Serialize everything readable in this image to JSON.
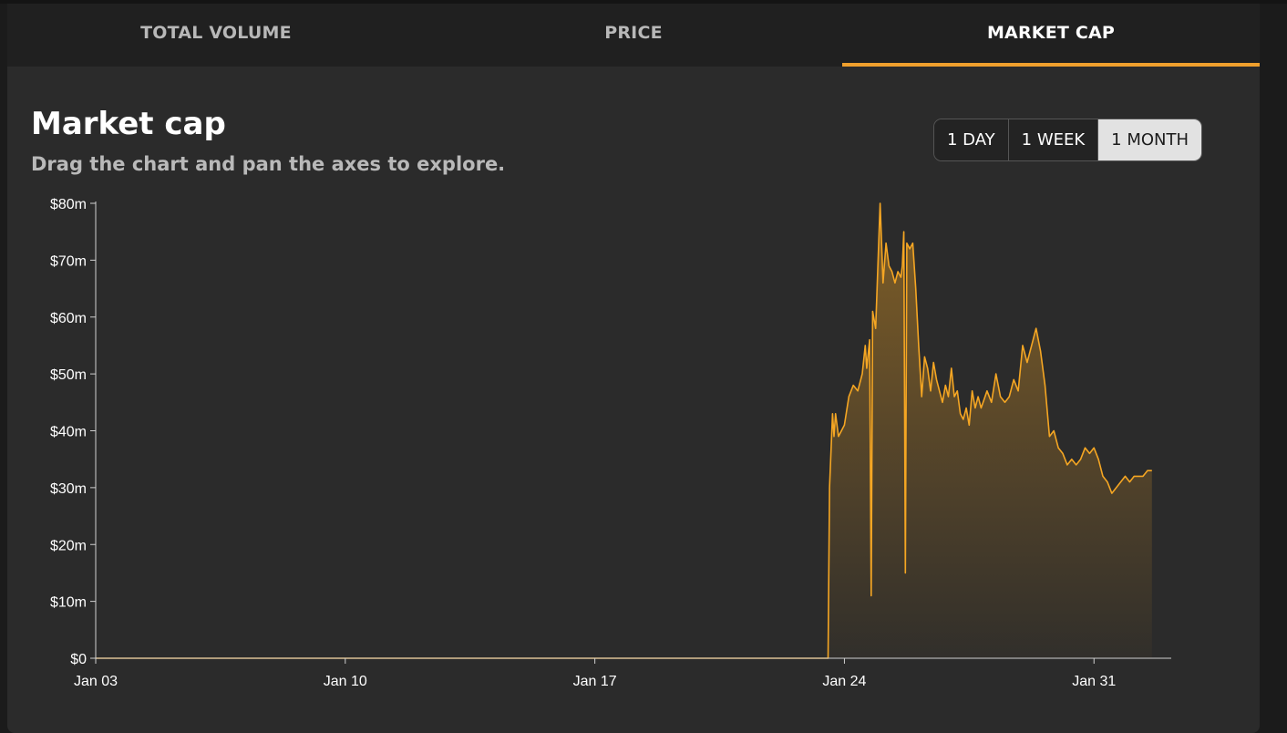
{
  "tabs": [
    {
      "label": "TOTAL VOLUME",
      "active": false
    },
    {
      "label": "PRICE",
      "active": false
    },
    {
      "label": "MARKET CAP",
      "active": true
    }
  ],
  "header": {
    "title": "Market cap",
    "subtitle": "Drag the chart and pan the axes to explore."
  },
  "range_buttons": [
    {
      "label": "1 DAY",
      "active": false
    },
    {
      "label": "1 WEEK",
      "active": false
    },
    {
      "label": "1 MONTH",
      "active": true
    }
  ],
  "colors": {
    "accent": "#f0a02d",
    "line": "#f5a623"
  },
  "chart_data": {
    "type": "area",
    "title": "Market cap",
    "ylabel": "",
    "xlabel": "",
    "ylim": [
      0,
      80
    ],
    "xlim": [
      "2025-01-03",
      "2025-02-02T04:00"
    ],
    "y_ticks": [
      {
        "value": 0,
        "label": "$0"
      },
      {
        "value": 10,
        "label": "$10m"
      },
      {
        "value": 20,
        "label": "$20m"
      },
      {
        "value": 30,
        "label": "$30m"
      },
      {
        "value": 40,
        "label": "$40m"
      },
      {
        "value": 50,
        "label": "$50m"
      },
      {
        "value": 60,
        "label": "$60m"
      },
      {
        "value": 70,
        "label": "$70m"
      },
      {
        "value": 80,
        "label": "$80m"
      }
    ],
    "x_ticks": [
      {
        "value": "2025-01-03",
        "label": "Jan 03"
      },
      {
        "value": "2025-01-10",
        "label": "Jan 10"
      },
      {
        "value": "2025-01-17",
        "label": "Jan 17"
      },
      {
        "value": "2025-01-24",
        "label": "Jan 24"
      },
      {
        "value": "2025-01-31",
        "label": "Jan 31"
      }
    ],
    "grid": false,
    "legend": "none",
    "series": [
      {
        "points": [
          [
            "2025-01-03T00:00",
            0
          ],
          [
            "2025-01-23T13:00",
            0
          ],
          [
            "2025-01-23T14:00",
            30
          ],
          [
            "2025-01-23T16:00",
            43
          ],
          [
            "2025-01-23T17:00",
            39
          ],
          [
            "2025-01-23T18:00",
            43
          ],
          [
            "2025-01-23T20:00",
            39
          ],
          [
            "2025-01-24T00:00",
            41
          ],
          [
            "2025-01-24T03:00",
            46
          ],
          [
            "2025-01-24T06:00",
            48
          ],
          [
            "2025-01-24T09:00",
            47
          ],
          [
            "2025-01-24T12:00",
            50
          ],
          [
            "2025-01-24T14:00",
            55
          ],
          [
            "2025-01-24T15:00",
            51
          ],
          [
            "2025-01-24T17:00",
            56
          ],
          [
            "2025-01-24T18:00",
            11
          ],
          [
            "2025-01-24T19:00",
            61
          ],
          [
            "2025-01-24T21:00",
            58
          ],
          [
            "2025-01-25T00:00",
            80
          ],
          [
            "2025-01-25T02:00",
            66
          ],
          [
            "2025-01-25T04:00",
            73
          ],
          [
            "2025-01-25T06:00",
            69
          ],
          [
            "2025-01-25T08:00",
            68
          ],
          [
            "2025-01-25T10:00",
            66
          ],
          [
            "2025-01-25T12:00",
            68
          ],
          [
            "2025-01-25T14:00",
            67
          ],
          [
            "2025-01-25T15:00",
            69
          ],
          [
            "2025-01-25T16:00",
            75
          ],
          [
            "2025-01-25T17:00",
            15
          ],
          [
            "2025-01-25T18:00",
            73
          ],
          [
            "2025-01-25T20:00",
            72
          ],
          [
            "2025-01-25T22:00",
            73
          ],
          [
            "2025-01-26T00:00",
            65
          ],
          [
            "2025-01-26T02:00",
            55
          ],
          [
            "2025-01-26T04:00",
            46
          ],
          [
            "2025-01-26T06:00",
            53
          ],
          [
            "2025-01-26T08:00",
            51
          ],
          [
            "2025-01-26T10:00",
            47
          ],
          [
            "2025-01-26T12:00",
            52
          ],
          [
            "2025-01-26T14:00",
            49
          ],
          [
            "2025-01-26T16:00",
            47
          ],
          [
            "2025-01-26T18:00",
            45
          ],
          [
            "2025-01-26T20:00",
            48
          ],
          [
            "2025-01-26T22:00",
            46
          ],
          [
            "2025-01-27T00:00",
            51
          ],
          [
            "2025-01-27T02:00",
            46
          ],
          [
            "2025-01-27T04:00",
            47
          ],
          [
            "2025-01-27T06:00",
            43
          ],
          [
            "2025-01-27T08:00",
            42
          ],
          [
            "2025-01-27T10:00",
            44
          ],
          [
            "2025-01-27T12:00",
            41
          ],
          [
            "2025-01-27T14:00",
            47
          ],
          [
            "2025-01-27T16:00",
            44
          ],
          [
            "2025-01-27T18:00",
            46
          ],
          [
            "2025-01-27T20:00",
            44
          ],
          [
            "2025-01-28T00:00",
            47
          ],
          [
            "2025-01-28T03:00",
            45
          ],
          [
            "2025-01-28T06:00",
            50
          ],
          [
            "2025-01-28T09:00",
            46
          ],
          [
            "2025-01-28T12:00",
            45
          ],
          [
            "2025-01-28T15:00",
            46
          ],
          [
            "2025-01-28T18:00",
            49
          ],
          [
            "2025-01-28T21:00",
            47
          ],
          [
            "2025-01-29T00:00",
            55
          ],
          [
            "2025-01-29T03:00",
            52
          ],
          [
            "2025-01-29T06:00",
            55
          ],
          [
            "2025-01-29T09:00",
            58
          ],
          [
            "2025-01-29T12:00",
            54
          ],
          [
            "2025-01-29T15:00",
            48
          ],
          [
            "2025-01-29T18:00",
            39
          ],
          [
            "2025-01-29T21:00",
            40
          ],
          [
            "2025-01-30T00:00",
            37
          ],
          [
            "2025-01-30T03:00",
            36
          ],
          [
            "2025-01-30T06:00",
            34
          ],
          [
            "2025-01-30T09:00",
            35
          ],
          [
            "2025-01-30T12:00",
            34
          ],
          [
            "2025-01-30T15:00",
            35
          ],
          [
            "2025-01-30T18:00",
            37
          ],
          [
            "2025-01-30T21:00",
            36
          ],
          [
            "2025-01-31T00:00",
            37
          ],
          [
            "2025-01-31T03:00",
            35
          ],
          [
            "2025-01-31T06:00",
            32
          ],
          [
            "2025-01-31T09:00",
            31
          ],
          [
            "2025-01-31T12:00",
            29
          ],
          [
            "2025-01-31T15:00",
            30
          ],
          [
            "2025-01-31T18:00",
            31
          ],
          [
            "2025-01-31T21:00",
            32
          ],
          [
            "2025-02-01T00:00",
            31
          ],
          [
            "2025-02-01T03:00",
            32
          ],
          [
            "2025-02-01T06:00",
            32
          ],
          [
            "2025-02-01T09:00",
            32
          ],
          [
            "2025-02-01T12:00",
            33
          ],
          [
            "2025-02-01T15:00",
            33
          ]
        ]
      }
    ]
  }
}
